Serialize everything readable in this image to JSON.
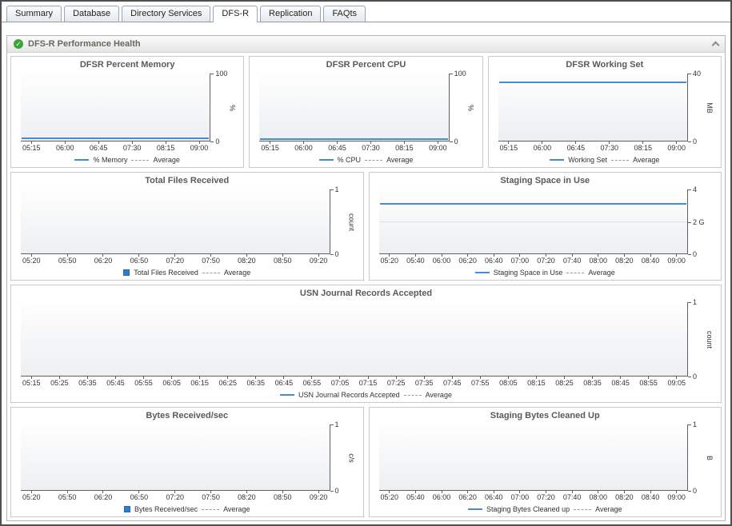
{
  "tabs": [
    {
      "label": "Summary",
      "active": false
    },
    {
      "label": "Database",
      "active": false
    },
    {
      "label": "Directory Services",
      "active": false
    },
    {
      "label": "DFS-R",
      "active": true
    },
    {
      "label": "Replication",
      "active": false
    },
    {
      "label": "FAQts",
      "active": false
    }
  ],
  "panel": {
    "title": "DFS-R Performance Health"
  },
  "chart_data": [
    {
      "type": "line",
      "title": "DFSR Percent Memory",
      "ylabel": "%",
      "ylim": [
        0,
        100
      ],
      "yticks": [
        "100",
        "0"
      ],
      "x": [
        "05:15",
        "06:00",
        "06:45",
        "07:30",
        "08:15",
        "09:00"
      ],
      "series": [
        {
          "name": "% Memory",
          "marker": "line",
          "value": 3,
          "color": "#4a8ccb"
        }
      ],
      "average_label": "Average"
    },
    {
      "type": "line",
      "title": "DFSR Percent CPU",
      "ylabel": "%",
      "ylim": [
        0,
        100
      ],
      "yticks": [
        "100",
        "0"
      ],
      "x": [
        "05:15",
        "06:00",
        "06:45",
        "07:30",
        "08:15",
        "09:00"
      ],
      "series": [
        {
          "name": "% CPU",
          "marker": "line",
          "value": 2,
          "color": "#4a8ccb"
        }
      ],
      "average_label": "Average"
    },
    {
      "type": "line",
      "title": "DFSR Working Set",
      "ylabel": "MB",
      "ylim": [
        0,
        40
      ],
      "yticks": [
        "40",
        "0"
      ],
      "x": [
        "05:15",
        "06:00",
        "06:45",
        "07:30",
        "08:15",
        "09:00"
      ],
      "series": [
        {
          "name": "Working Set",
          "marker": "line",
          "value": 35,
          "color": "#4a8ccb"
        }
      ],
      "average_label": "Average"
    },
    {
      "type": "bar",
      "title": "Total Files Received",
      "ylabel": "count",
      "ylim": [
        0,
        1
      ],
      "yticks": [
        "1",
        "0"
      ],
      "x": [
        "05:20",
        "05:50",
        "06:20",
        "06:50",
        "07:20",
        "07:50",
        "08:20",
        "08:50",
        "09:20"
      ],
      "series": [
        {
          "name": "Total Files Received",
          "marker": "square",
          "value": 0,
          "color": "#2f7ed1"
        }
      ],
      "average_label": "Average"
    },
    {
      "type": "line",
      "title": "Staging Space in Use",
      "ylabel": "",
      "ylim": [
        0,
        4
      ],
      "yticks": [
        "4",
        "2 G",
        "0"
      ],
      "x": [
        "05:20",
        "05:40",
        "06:00",
        "06:20",
        "06:40",
        "07:00",
        "07:20",
        "07:40",
        "08:00",
        "08:20",
        "08:40",
        "09:00"
      ],
      "series": [
        {
          "name": "Staging Space in Use",
          "marker": "line",
          "value": 3.1,
          "color": "#4a8ccb"
        }
      ],
      "average_label": "Average"
    },
    {
      "type": "line",
      "title": "USN Journal Records Accepted",
      "ylabel": "count",
      "ylim": [
        0,
        1
      ],
      "yticks": [
        "1",
        "0"
      ],
      "x": [
        "05:15",
        "05:25",
        "05:35",
        "05:45",
        "05:55",
        "06:05",
        "06:15",
        "06:25",
        "06:35",
        "06:45",
        "06:55",
        "07:05",
        "07:15",
        "07:25",
        "07:35",
        "07:45",
        "07:55",
        "08:05",
        "08:15",
        "08:25",
        "08:35",
        "08:45",
        "08:55",
        "09:05"
      ],
      "series": [
        {
          "name": "USN Journal Records Accepted",
          "marker": "line",
          "value": 0,
          "color": "#4a8ccb"
        }
      ],
      "average_label": "Average"
    },
    {
      "type": "bar",
      "title": "Bytes Received/sec",
      "ylabel": "c/s",
      "ylim": [
        0,
        1
      ],
      "yticks": [
        "1",
        "0"
      ],
      "x": [
        "05:20",
        "05:50",
        "06:20",
        "06:50",
        "07:20",
        "07:50",
        "08:20",
        "08:50",
        "09:20"
      ],
      "series": [
        {
          "name": "Bytes Received/sec",
          "marker": "square",
          "value": 0,
          "color": "#2f7ed1"
        }
      ],
      "average_label": "Average"
    },
    {
      "type": "line",
      "title": "Staging Bytes Cleaned Up",
      "ylabel": "B",
      "ylim": [
        0,
        1
      ],
      "yticks": [
        "1",
        "0"
      ],
      "x": [
        "05:20",
        "05:40",
        "06:00",
        "06:20",
        "06:40",
        "07:00",
        "07:20",
        "07:40",
        "08:00",
        "08:20",
        "08:40",
        "09:00"
      ],
      "series": [
        {
          "name": "Staging Bytes Cleaned up",
          "marker": "line",
          "value": 0,
          "color": "#4a8ccb"
        }
      ],
      "average_label": "Average"
    }
  ]
}
